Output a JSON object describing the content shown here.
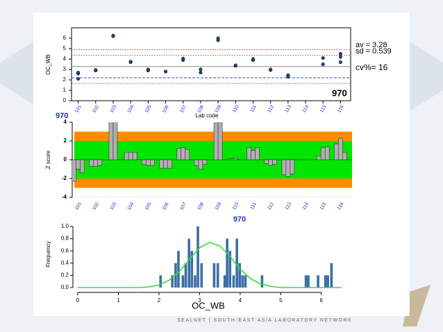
{
  "chart_data": [
    {
      "type": "scatter",
      "y_label": "OC_WB",
      "x_label": "Lab code",
      "xlim": [
        100.5,
        116.5
      ],
      "xticks": [
        101,
        102,
        103,
        104,
        105,
        106,
        107,
        108,
        109,
        110,
        111,
        112,
        113,
        114,
        115,
        116
      ],
      "ylim": [
        0,
        6.6
      ],
      "yticks": [
        0,
        1,
        2,
        3,
        4,
        5,
        6
      ],
      "color": "#1f4e79",
      "x": [
        101,
        101,
        101,
        102,
        102,
        103,
        103,
        104,
        104,
        105,
        105,
        106,
        106,
        107,
        107,
        108,
        108,
        109,
        109,
        110,
        110,
        111,
        111,
        112,
        112,
        113,
        113,
        115,
        115,
        116,
        116,
        116
      ],
      "y": [
        2.1,
        2.6,
        2.7,
        2.9,
        2.95,
        6.2,
        6.25,
        3.7,
        3.75,
        2.9,
        3.0,
        2.8,
        2.8,
        3.9,
        4.05,
        2.7,
        3.0,
        5.8,
        6.0,
        3.35,
        3.4,
        3.9,
        4.0,
        2.95,
        3.0,
        2.3,
        2.45,
        3.5,
        4.1,
        3.7,
        4.2,
        4.5
      ],
      "reference_lines": [
        {
          "value": 4.9,
          "color": "#e03030",
          "style": "dotted"
        },
        {
          "value": 4.36,
          "color": "#e03030",
          "style": "dotted"
        },
        {
          "value": 3.28,
          "color": "#888888",
          "style": "solid"
        },
        {
          "value": 2.2,
          "color": "#3050c0",
          "style": "dashed"
        },
        {
          "value": 1.66,
          "color": "#e03030",
          "style": "dotted"
        }
      ],
      "annotations": [
        "av = 3.28",
        "sd = 0.539",
        "cv%= 16",
        "970"
      ]
    },
    {
      "type": "grouped-bar",
      "title": "970",
      "y_label": "Z score",
      "ylim": [
        -4,
        4
      ],
      "yticks": [
        -4,
        -2,
        0,
        2,
        4
      ],
      "color": "#b0b0b0",
      "bands": [
        {
          "limit": 3,
          "color": "#ff8c00"
        },
        {
          "limit": 2,
          "color": "#00e600"
        }
      ],
      "categories": [
        "101",
        "102",
        "103",
        "104",
        "105",
        "106",
        "107",
        "108",
        "109",
        "110",
        "111",
        "112",
        "113",
        "114",
        "115",
        "116"
      ],
      "groups": [
        [
          -2.3,
          -1.0,
          -1.4
        ],
        [
          -0.7,
          -0.7,
          -0.6
        ],
        [
          5.5,
          5.6
        ],
        [
          0.8,
          0.8,
          0.8
        ],
        [
          -0.5,
          -0.6,
          -0.6
        ],
        [
          -0.9,
          -0.9,
          -0.9
        ],
        [
          1.2,
          1.3,
          1.1
        ],
        [
          -0.6,
          -1.0,
          -0.5
        ],
        [
          4.7,
          5.0
        ],
        [
          0.1,
          0.2,
          0.0
        ],
        [
          1.3,
          1.0,
          1.3
        ],
        [
          -0.4,
          -0.6,
          -0.5
        ],
        [
          -1.6,
          -1.8,
          -1.5
        ],
        [],
        [
          0.4,
          1.3,
          1.4
        ],
        [
          1.7,
          2.3,
          0.8
        ]
      ]
    },
    {
      "type": "histogram",
      "title": "970",
      "x_label": "OC_WB",
      "y_label": "Frequency",
      "xlim": [
        0,
        6.5
      ],
      "xticks": [
        0,
        1,
        2,
        3,
        4,
        5,
        6
      ],
      "ylim": [
        0,
        1.05
      ],
      "yticks": [
        {
          "value": 0,
          "label": "0.0"
        },
        {
          "value": 0.2,
          "label": "0.2"
        },
        {
          "value": 0.4,
          "label": "0.4"
        },
        {
          "value": 0.6,
          "label": "0.6"
        },
        {
          "value": 0.8,
          "label": "0.8"
        },
        {
          "value": 1,
          "label": "1.0"
        }
      ],
      "color": "#3a6ea5",
      "curve_color": "#33dd33",
      "x": [
        2.04,
        2.33,
        2.41,
        2.48,
        2.59,
        2.66,
        2.74,
        2.81,
        2.89,
        2.96,
        3.05,
        3.36,
        3.45,
        3.62,
        3.68,
        3.75,
        3.84,
        3.92,
        3.99,
        4.06,
        4.13,
        4.54,
        5.62,
        5.68,
        5.92,
        6.1,
        6.16,
        6.25
      ],
      "values": [
        0.2,
        0.2,
        0.4,
        0.6,
        0.2,
        0.4,
        0.8,
        0.6,
        0.2,
        1.0,
        0.4,
        0.4,
        0.4,
        0.2,
        0.8,
        0.6,
        0.2,
        0.8,
        0.4,
        0.2,
        0.2,
        0.2,
        0.2,
        0.2,
        0.2,
        0.2,
        0.2,
        0.4
      ],
      "curve": {
        "x": [
          0,
          1.5,
          1.75,
          2,
          2.25,
          2.5,
          2.75,
          3,
          3.25,
          3.5,
          3.75,
          4,
          4.25,
          4.5,
          4.75,
          5,
          6.5
        ],
        "y": [
          0,
          0,
          0.01,
          0.04,
          0.12,
          0.26,
          0.46,
          0.65,
          0.74,
          0.68,
          0.51,
          0.3,
          0.15,
          0.06,
          0.02,
          0,
          0
        ]
      }
    }
  ],
  "footer": "SEALNET | SOUTH-EAST ASIA LABORATORY NETWORK"
}
